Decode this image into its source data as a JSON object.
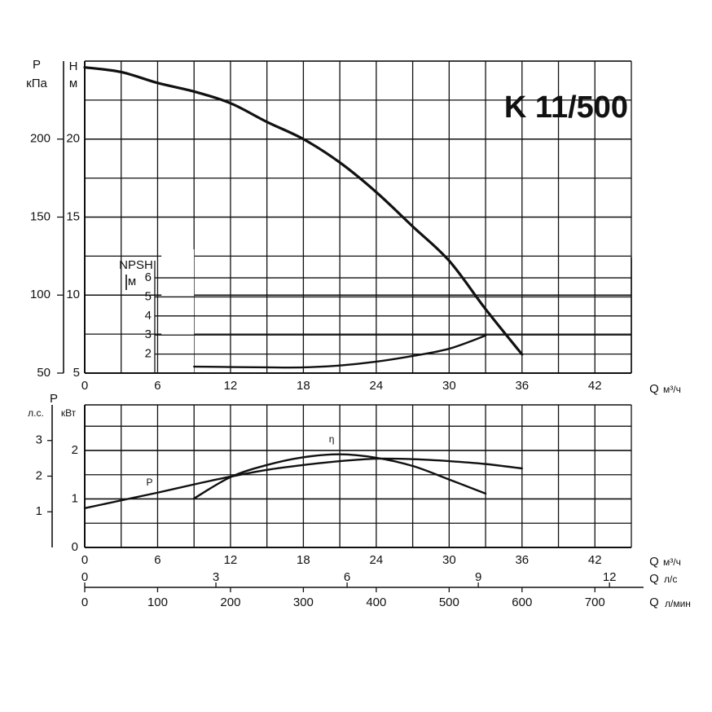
{
  "chart_data": [
    {
      "type": "line",
      "title": "K 11/500",
      "xlabel": "Q",
      "xunit": "м³/ч",
      "xlim": [
        0,
        45
      ],
      "xticks": [
        0,
        6,
        12,
        18,
        24,
        30,
        36,
        42
      ],
      "xminor": [
        3,
        9,
        15,
        21,
        27,
        33,
        39,
        45
      ],
      "ylabel": "H",
      "yunit": "м",
      "ylim": [
        5,
        25
      ],
      "yticks": [
        5,
        10,
        15,
        20
      ],
      "yminor": [
        7.5,
        12.5,
        17.5,
        22.5,
        25
      ],
      "y2label": "P",
      "y2unit": "кПа",
      "y2lim": [
        50,
        250
      ],
      "y2ticks": [
        50,
        100,
        150,
        200
      ],
      "npsh": {
        "label": "NPSH",
        "unit": "м",
        "xlim": [
          9,
          45
        ],
        "ylim": [
          1,
          6.9
        ],
        "yticks": [
          2,
          3,
          4,
          5,
          6
        ]
      },
      "grid": true,
      "color": "#111",
      "series": [
        {
          "x": [
            0,
            3,
            6,
            9,
            12,
            15,
            18,
            21,
            24,
            27,
            30,
            33,
            36
          ],
          "values": [
            24.6,
            24.3,
            23.6,
            23.05,
            22.3,
            21.1,
            20.0,
            18.5,
            16.6,
            14.4,
            12.2,
            9.1,
            6.2
          ],
          "axis": "y",
          "width": 3.2
        },
        {
          "x": [
            9,
            12,
            15,
            18,
            21,
            24,
            27,
            30,
            33
          ],
          "values": [
            1.34,
            1.32,
            1.3,
            1.3,
            1.4,
            1.6,
            1.9,
            2.28,
            2.97
          ],
          "axis": "npsh",
          "width": 2.4
        }
      ]
    },
    {
      "type": "line",
      "xlabel": "Q",
      "xunit": "м³/ч",
      "xlim": [
        0,
        45
      ],
      "xticks": [
        0,
        6,
        12,
        18,
        24,
        30,
        36,
        42
      ],
      "xminor": [
        3,
        9,
        15,
        21,
        27,
        33,
        39,
        45
      ],
      "x2label": "Q",
      "x2unit": "л/с",
      "x2lim": [
        0,
        12.5
      ],
      "x2ticks": [
        0,
        3,
        6,
        9,
        12
      ],
      "x3label": "Q",
      "x3unit": "л/мин",
      "x3lim": [
        0,
        750
      ],
      "x3ticks": [
        0,
        100,
        200,
        300,
        400,
        500,
        600,
        700
      ],
      "ylabel": "P",
      "yunit": "кВт",
      "ylim": [
        0,
        2.94
      ],
      "yticks": [
        0,
        1,
        2
      ],
      "yminor": [
        0.5,
        1.5,
        2.5
      ],
      "y2unit": "л.с.",
      "y2lim": [
        0,
        4
      ],
      "y2ticks": [
        1,
        2,
        3
      ],
      "grid": true,
      "color": "#111",
      "series": [
        {
          "name": "P",
          "x": [
            0,
            3,
            6,
            9,
            12,
            15,
            18,
            21,
            24,
            27,
            30,
            33,
            36
          ],
          "values": [
            0.81,
            0.97,
            1.13,
            1.3,
            1.46,
            1.6,
            1.7,
            1.78,
            1.83,
            1.82,
            1.78,
            1.72,
            1.63
          ],
          "width": 2.4
        },
        {
          "name": "η",
          "x": [
            9,
            12,
            15,
            18,
            21,
            24,
            27,
            30,
            33
          ],
          "values": [
            1.01,
            1.45,
            1.7,
            1.86,
            1.92,
            1.85,
            1.68,
            1.4,
            1.11
          ],
          "width": 2.4
        }
      ]
    }
  ]
}
